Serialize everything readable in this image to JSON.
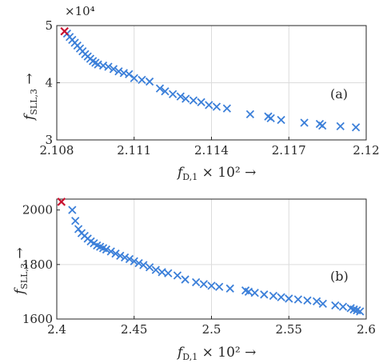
{
  "chart_data": [
    {
      "type": "scatter",
      "panel_label": "(a)",
      "xlabel": {
        "sym": "f",
        "sub": "D,1",
        "suffix": " × 10² →"
      },
      "ylabel": {
        "sym": "f",
        "sub": "SLL,3",
        "suffix": " →"
      },
      "y_exponent_label": "×10⁴",
      "xlim": [
        2.108,
        2.12
      ],
      "ylim": [
        3,
        5
      ],
      "xticks": [
        2.108,
        2.111,
        2.114,
        2.117,
        2.12
      ],
      "xtick_labels": [
        "2.108",
        "2.111",
        "2.114",
        "2.117",
        "2.12"
      ],
      "yticks": [
        3,
        4,
        5
      ],
      "ytick_labels": [
        "3",
        "4",
        "5"
      ],
      "grid": true,
      "marker_color": "#3b7fd9",
      "highlight_color": "#c8102e",
      "highlight": {
        "x": 2.1083,
        "y": 4.9
      },
      "series": [
        {
          "marker": "x",
          "x": [
            2.1084,
            2.1085,
            2.1086,
            2.1087,
            2.1088,
            2.1089,
            2.109,
            2.1091,
            2.1092,
            2.1093,
            2.1094,
            2.1095,
            2.1096,
            2.1098,
            2.11,
            2.1102,
            2.1104,
            2.1106,
            2.1108,
            2.111,
            2.1113,
            2.1116,
            2.112,
            2.1122,
            2.1125,
            2.1128,
            2.113,
            2.1133,
            2.1136,
            2.1139,
            2.1142,
            2.1146,
            2.1155,
            2.1162,
            2.1163,
            2.1167,
            2.1176,
            2.1182,
            2.1183,
            2.119,
            2.1196
          ],
          "y": [
            4.86,
            4.8,
            4.75,
            4.7,
            4.65,
            4.6,
            4.55,
            4.5,
            4.46,
            4.42,
            4.38,
            4.35,
            4.32,
            4.3,
            4.28,
            4.24,
            4.2,
            4.17,
            4.15,
            4.08,
            4.05,
            4.02,
            3.9,
            3.85,
            3.8,
            3.76,
            3.72,
            3.69,
            3.66,
            3.61,
            3.58,
            3.55,
            3.45,
            3.41,
            3.38,
            3.35,
            3.3,
            3.28,
            3.25,
            3.24,
            3.22
          ]
        }
      ]
    },
    {
      "type": "scatter",
      "panel_label": "(b)",
      "xlabel": {
        "sym": "f",
        "sub": "D,1",
        "suffix": " × 10² →"
      },
      "ylabel": {
        "sym": "f",
        "sub": "SLL,3",
        "suffix": " →"
      },
      "xlim": [
        2.4,
        2.6
      ],
      "ylim": [
        1600,
        2040
      ],
      "xticks": [
        2.4,
        2.45,
        2.5,
        2.55,
        2.6
      ],
      "xtick_labels": [
        "2.4",
        "2.45",
        "2.5",
        "2.55",
        "2.6"
      ],
      "yticks": [
        1600,
        1800,
        2000
      ],
      "ytick_labels": [
        "1600",
        "1800",
        "2000"
      ],
      "grid": true,
      "marker_color": "#3b7fd9",
      "highlight_color": "#c8102e",
      "highlight": {
        "x": 2.403,
        "y": 2030
      },
      "series": [
        {
          "marker": "x",
          "x": [
            2.41,
            2.412,
            2.414,
            2.416,
            2.418,
            2.42,
            2.422,
            2.424,
            2.426,
            2.428,
            2.43,
            2.432,
            2.435,
            2.438,
            2.441,
            2.444,
            2.447,
            2.45,
            2.453,
            2.456,
            2.46,
            2.464,
            2.468,
            2.472,
            2.478,
            2.483,
            2.49,
            2.495,
            2.5,
            2.505,
            2.512,
            2.522,
            2.524,
            2.528,
            2.534,
            2.54,
            2.545,
            2.55,
            2.556,
            2.562,
            2.568,
            2.572,
            2.58,
            2.585,
            2.59,
            2.592,
            2.594,
            2.596
          ],
          "y": [
            2000,
            1960,
            1930,
            1915,
            1905,
            1895,
            1885,
            1878,
            1870,
            1865,
            1860,
            1855,
            1848,
            1840,
            1832,
            1826,
            1820,
            1812,
            1805,
            1798,
            1790,
            1780,
            1772,
            1768,
            1760,
            1745,
            1735,
            1728,
            1722,
            1718,
            1712,
            1705,
            1700,
            1696,
            1690,
            1685,
            1680,
            1675,
            1672,
            1668,
            1665,
            1656,
            1650,
            1645,
            1640,
            1635,
            1632,
            1628
          ]
        }
      ]
    }
  ]
}
